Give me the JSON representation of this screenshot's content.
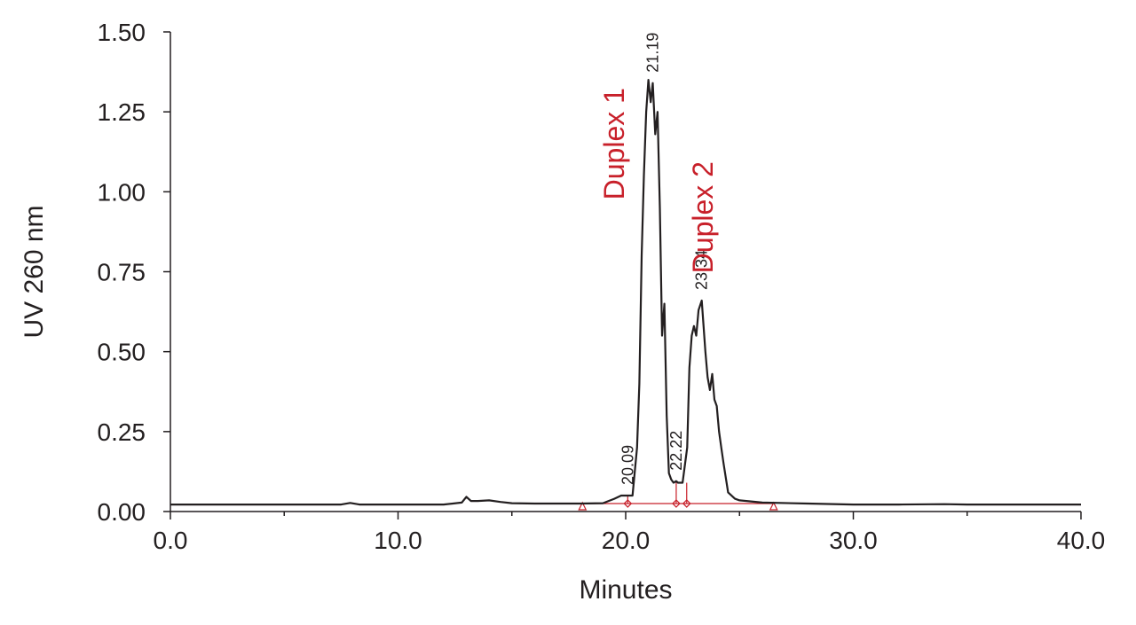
{
  "chart_data": {
    "type": "line",
    "xlabel": "Minutes",
    "ylabel": "UV 260 nm",
    "xlim": [
      0,
      40
    ],
    "ylim": [
      0,
      1.5
    ],
    "x_ticks": [
      "0.0",
      "10.0",
      "20.0",
      "30.0",
      "40.0"
    ],
    "x_tick_values": [
      0,
      10,
      20,
      30,
      40
    ],
    "y_ticks": [
      "0.00",
      "0.25",
      "0.50",
      "0.75",
      "1.00",
      "1.25",
      "1.50"
    ],
    "y_tick_values": [
      0,
      0.25,
      0.5,
      0.75,
      1.0,
      1.25,
      1.5
    ],
    "grid": false,
    "colors": {
      "trace": "#231f20",
      "integration": "#c8202a",
      "annotation": "#c8202a",
      "axis": "#231f20"
    },
    "series": [
      {
        "x": [
          0.0,
          2.0,
          4.0,
          6.0,
          7.5,
          7.9,
          8.3,
          10.0,
          12.0,
          12.8,
          13.0,
          13.2,
          13.5,
          14.0,
          14.5,
          15.0,
          16.0,
          17.0,
          18.0,
          19.0,
          19.5,
          19.8,
          20.0,
          20.09,
          20.3,
          20.5,
          20.6,
          20.7,
          20.8,
          20.9,
          21.0,
          21.1,
          21.19,
          21.3,
          21.4,
          21.5,
          21.6,
          21.7,
          21.8,
          21.9,
          22.0,
          22.1,
          22.22,
          22.3,
          22.5,
          22.7,
          22.8,
          22.9,
          23.0,
          23.1,
          23.2,
          23.34,
          23.5,
          23.6,
          23.7,
          23.8,
          23.9,
          24.0,
          24.1,
          24.2,
          24.3,
          24.5,
          24.8,
          25.0,
          26.0,
          28.0,
          30.0,
          32.0,
          34.0,
          35.0,
          36.0,
          38.0,
          40.0
        ],
        "y": [
          0.022,
          0.022,
          0.022,
          0.022,
          0.022,
          0.027,
          0.022,
          0.022,
          0.022,
          0.028,
          0.046,
          0.033,
          0.033,
          0.035,
          0.03,
          0.026,
          0.025,
          0.025,
          0.025,
          0.026,
          0.04,
          0.05,
          0.05,
          0.05,
          0.05,
          0.2,
          0.4,
          0.8,
          1.05,
          1.25,
          1.35,
          1.28,
          1.34,
          1.18,
          1.25,
          0.95,
          0.55,
          0.65,
          0.3,
          0.12,
          0.1,
          0.09,
          0.095,
          0.09,
          0.09,
          0.2,
          0.45,
          0.55,
          0.58,
          0.55,
          0.63,
          0.66,
          0.5,
          0.42,
          0.38,
          0.43,
          0.35,
          0.33,
          0.25,
          0.2,
          0.15,
          0.06,
          0.04,
          0.035,
          0.028,
          0.025,
          0.022,
          0.022,
          0.023,
          0.022,
          0.022,
          0.022,
          0.022
        ]
      }
    ],
    "peak_labels": [
      "20.09",
      "21.19",
      "22.22",
      "23.34"
    ],
    "peak_positions": [
      {
        "x": 20.09,
        "y": 0.05
      },
      {
        "x": 21.19,
        "y": 1.34
      },
      {
        "x": 22.22,
        "y": 0.095
      },
      {
        "x": 23.34,
        "y": 0.66
      }
    ],
    "annotations": [
      {
        "label": "Duplex 1",
        "x": 20.0,
        "y": 1.15
      },
      {
        "label": "Duplex 2",
        "x": 23.9,
        "y": 0.92
      }
    ],
    "integration": {
      "baseline": [
        18.1,
        26.5
      ],
      "baseline_y": 0.025,
      "dividers": [
        20.09,
        22.22,
        22.68
      ],
      "start_end_markers": [
        18.1,
        26.5
      ],
      "split_markers": [
        20.09,
        22.22,
        22.68
      ]
    }
  }
}
